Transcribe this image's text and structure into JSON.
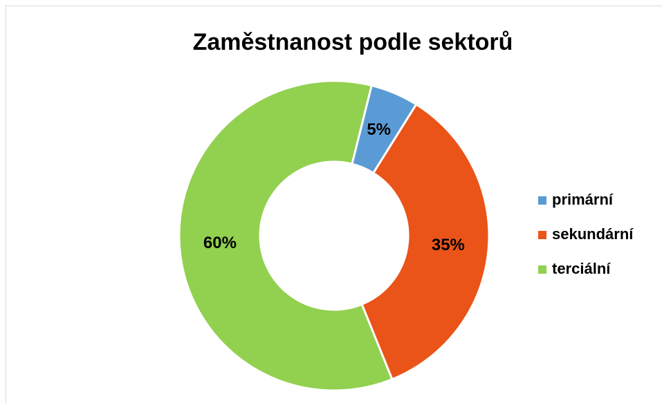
{
  "chart_data": {
    "type": "donut",
    "title": "Zaměstnanost podle sektorů",
    "categories": [
      "primární",
      "sekundární",
      "terciální"
    ],
    "values": [
      5,
      35,
      60
    ],
    "value_labels": [
      "5%",
      "35%",
      "60%"
    ],
    "colors": [
      "#5b9bd5",
      "#ea5419",
      "#92d050"
    ],
    "legend": "right"
  }
}
